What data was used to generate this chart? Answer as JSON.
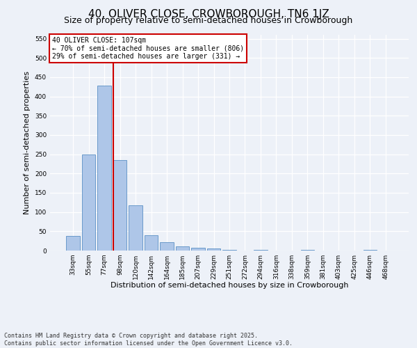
{
  "title": "40, OLIVER CLOSE, CROWBOROUGH, TN6 1JZ",
  "subtitle": "Size of property relative to semi-detached houses in Crowborough",
  "xlabel": "Distribution of semi-detached houses by size in Crowborough",
  "ylabel": "Number of semi-detached properties",
  "categories": [
    "33sqm",
    "55sqm",
    "77sqm",
    "98sqm",
    "120sqm",
    "142sqm",
    "164sqm",
    "185sqm",
    "207sqm",
    "229sqm",
    "251sqm",
    "272sqm",
    "294sqm",
    "316sqm",
    "338sqm",
    "359sqm",
    "381sqm",
    "403sqm",
    "425sqm",
    "446sqm",
    "468sqm"
  ],
  "values": [
    38,
    250,
    428,
    235,
    118,
    40,
    22,
    10,
    8,
    5,
    2,
    0,
    2,
    0,
    0,
    2,
    0,
    0,
    0,
    2,
    0
  ],
  "bar_color": "#aec6e8",
  "bar_edge_color": "#5a8fc4",
  "vline_x_index": 3,
  "vline_color": "#cc0000",
  "annotation_title": "40 OLIVER CLOSE: 107sqm",
  "annotation_line1": "← 70% of semi-detached houses are smaller (806)",
  "annotation_line2": "29% of semi-detached houses are larger (331) →",
  "annotation_box_edgecolor": "#cc0000",
  "ylim": [
    0,
    560
  ],
  "yticks": [
    0,
    50,
    100,
    150,
    200,
    250,
    300,
    350,
    400,
    450,
    500,
    550
  ],
  "footnote": "Contains HM Land Registry data © Crown copyright and database right 2025.\nContains public sector information licensed under the Open Government Licence v3.0.",
  "bg_color": "#edf1f8",
  "title_fontsize": 11,
  "subtitle_fontsize": 9,
  "axis_label_fontsize": 8,
  "tick_fontsize": 6.5,
  "footnote_fontsize": 6,
  "ylabel_fontsize": 8
}
